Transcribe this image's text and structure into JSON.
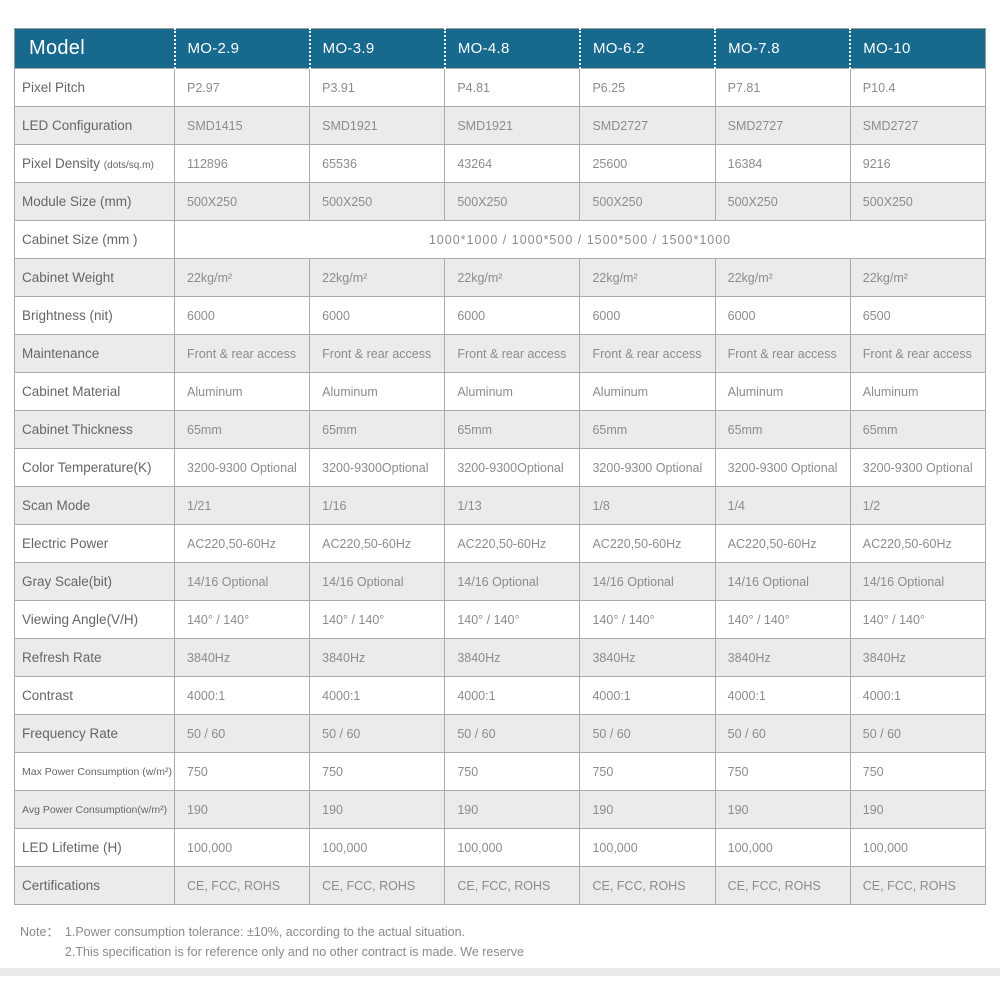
{
  "colors": {
    "header_bg": "#17698E",
    "row_alt_bg": "#EBEBEB",
    "label_color": "#666666",
    "value_color": "#8C8C8C"
  },
  "header": {
    "model_label": "Model",
    "columns": [
      "MO-2.9",
      "MO-3.9",
      "MO-4.8",
      "MO-6.2",
      "MO-7.8",
      "MO-10"
    ]
  },
  "table": {
    "rows": [
      {
        "label": "Pixel Pitch",
        "values": [
          "P2.97",
          "P3.91",
          "P4.81",
          "P6.25",
          "P7.81",
          "P10.4"
        ]
      },
      {
        "label": "LED Configuration",
        "values": [
          "SMD1415",
          "SMD1921",
          "SMD1921",
          "SMD2727",
          "SMD2727",
          "SMD2727"
        ]
      },
      {
        "label": "Pixel Density",
        "label_note": "(dots/sq.m)",
        "values": [
          "112896",
          "65536",
          "43264",
          "25600",
          "16384",
          "9216"
        ]
      },
      {
        "label": "Module Size (mm)",
        "values": [
          "500X250",
          "500X250",
          "500X250",
          "500X250",
          "500X250",
          "500X250"
        ]
      },
      {
        "label": "Cabinet Size (mm )",
        "merged_value": "1000*1000 / 1000*500 / 1500*500 / 1500*1000"
      },
      {
        "label": "Cabinet Weight",
        "values": [
          "22kg/m²",
          "22kg/m²",
          "22kg/m²",
          "22kg/m²",
          "22kg/m²",
          "22kg/m²"
        ]
      },
      {
        "label": "Brightness (nit)",
        "values": [
          "6000",
          "6000",
          "6000",
          "6000",
          "6000",
          "6500"
        ]
      },
      {
        "label": "Maintenance",
        "values": [
          "Front & rear access",
          "Front & rear access",
          "Front & rear access",
          "Front & rear access",
          "Front & rear access",
          "Front & rear access"
        ]
      },
      {
        "label": "Cabinet Material",
        "values": [
          "Aluminum",
          "Aluminum",
          "Aluminum",
          "Aluminum",
          "Aluminum",
          "Aluminum"
        ]
      },
      {
        "label": "Cabinet Thickness",
        "values": [
          "65mm",
          "65mm",
          "65mm",
          "65mm",
          "65mm",
          "65mm"
        ]
      },
      {
        "label": "Color Temperature(K)",
        "values": [
          "3200-9300 Optional",
          "3200-9300Optional",
          "3200-9300Optional",
          "3200-9300 Optional",
          "3200-9300 Optional",
          "3200-9300 Optional"
        ]
      },
      {
        "label": "Scan Mode",
        "values": [
          "1/21",
          "1/16",
          "1/13",
          "1/8",
          "1/4",
          "1/2"
        ]
      },
      {
        "label": "Electric Power",
        "values": [
          "AC220,50-60Hz",
          "AC220,50-60Hz",
          "AC220,50-60Hz",
          "AC220,50-60Hz",
          "AC220,50-60Hz",
          "AC220,50-60Hz"
        ]
      },
      {
        "label": "Gray Scale(bit)",
        "values": [
          "14/16 Optional",
          "14/16 Optional",
          "14/16 Optional",
          "14/16 Optional",
          "14/16 Optional",
          "14/16 Optional"
        ]
      },
      {
        "label": "Viewing Angle(V/H)",
        "values": [
          "140° / 140°",
          "140° / 140°",
          "140° / 140°",
          "140° / 140°",
          "140° / 140°",
          "140° / 140°"
        ]
      },
      {
        "label": "Refresh Rate",
        "values": [
          "3840Hz",
          "3840Hz",
          "3840Hz",
          "3840Hz",
          "3840Hz",
          "3840Hz"
        ]
      },
      {
        "label": "Contrast",
        "values": [
          "4000:1",
          "4000:1",
          "4000:1",
          "4000:1",
          "4000:1",
          "4000:1"
        ]
      },
      {
        "label": "Frequency Rate",
        "values": [
          "50 / 60",
          "50 / 60",
          "50 / 60",
          "50 / 60",
          "50 / 60",
          "50 / 60"
        ]
      },
      {
        "label": "Max Power Consumption (w/m²)",
        "small_label": true,
        "values": [
          "750",
          "750",
          "750",
          "750",
          "750",
          "750"
        ]
      },
      {
        "label": "Avg Power Consumption(w/m²)",
        "small_label": true,
        "values": [
          "190",
          "190",
          "190",
          "190",
          "190",
          "190"
        ]
      },
      {
        "label": "LED Lifetime (H)",
        "values": [
          "100,000",
          "100,000",
          "100,000",
          "100,000",
          "100,000",
          "100,000"
        ]
      },
      {
        "label": "Certifications",
        "values": [
          "CE, FCC, ROHS",
          "CE, FCC, ROHS",
          "CE, FCC, ROHS",
          "CE, FCC, ROHS",
          "CE, FCC, ROHS",
          "CE, FCC, ROHS"
        ]
      }
    ]
  },
  "note": {
    "label": "Note：",
    "lines": [
      "1.Power consumption tolerance: ±10%, according to the actual situation.",
      "2.This specification is for reference only and no other contract is made. We reserve"
    ]
  }
}
